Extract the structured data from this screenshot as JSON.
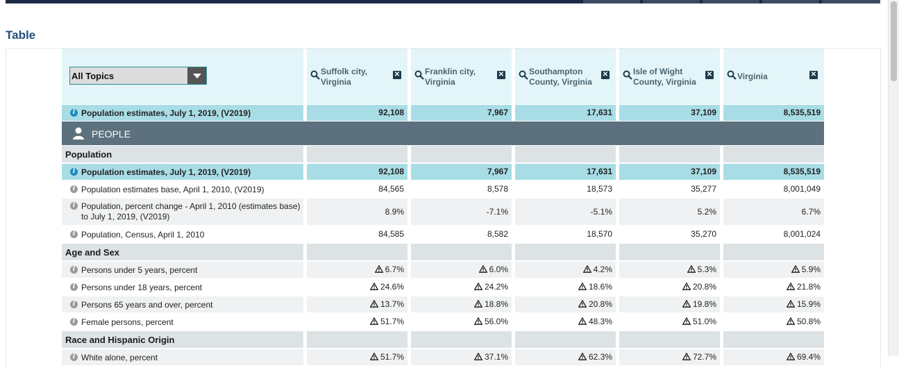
{
  "page": {
    "section_title": "Table"
  },
  "topics": {
    "selected": "All Topics"
  },
  "geographies": [
    {
      "name": "Suffolk city, Virginia"
    },
    {
      "name": "Franklin city, Virginia"
    },
    {
      "name": "Southampton County, Virginia"
    },
    {
      "name": "Isle of Wight County, Virginia"
    },
    {
      "name": "Virginia"
    }
  ],
  "summary_row": {
    "label": "Population estimates, July 1, 2019, (V2019)",
    "values": [
      "92,108",
      "7,967",
      "17,631",
      "37,109",
      "8,535,519"
    ]
  },
  "people_label": "PEOPLE",
  "rows": [
    {
      "kind": "cat",
      "label": "Population",
      "values": [
        "",
        "",
        "",
        "",
        ""
      ]
    },
    {
      "kind": "hl",
      "label": "Population estimates, July 1, 2019, (V2019)",
      "values": [
        "92,108",
        "7,967",
        "17,631",
        "37,109",
        "8,535,519"
      ]
    },
    {
      "kind": "plain",
      "label": "Population estimates base, April 1, 2010, (V2019)",
      "values": [
        "84,565",
        "8,578",
        "18,573",
        "35,277",
        "8,001,049"
      ]
    },
    {
      "kind": "alt",
      "label": "Population, percent change - April 1, 2010 (estimates base) to July 1, 2019, (V2019)",
      "values": [
        "8.9%",
        "-7.1%",
        "-5.1%",
        "5.2%",
        "6.7%"
      ]
    },
    {
      "kind": "plain",
      "label": "Population, Census, April 1, 2010",
      "values": [
        "84,585",
        "8,582",
        "18,570",
        "35,270",
        "8,001,024"
      ]
    },
    {
      "kind": "cat",
      "label": "Age and Sex",
      "values": [
        "",
        "",
        "",
        "",
        ""
      ]
    },
    {
      "kind": "alt",
      "label": "Persons under 5 years, percent",
      "warn": true,
      "values": [
        "6.7%",
        "6.0%",
        "4.2%",
        "5.3%",
        "5.9%"
      ]
    },
    {
      "kind": "plain",
      "label": "Persons under 18 years, percent",
      "warn": true,
      "values": [
        "24.6%",
        "24.2%",
        "18.6%",
        "20.8%",
        "21.8%"
      ]
    },
    {
      "kind": "alt",
      "label": "Persons 65 years and over, percent",
      "warn": true,
      "values": [
        "13.7%",
        "18.8%",
        "20.8%",
        "19.8%",
        "15.9%"
      ]
    },
    {
      "kind": "plain",
      "label": "Female persons, percent",
      "warn": true,
      "values": [
        "51.7%",
        "56.0%",
        "48.3%",
        "51.0%",
        "50.8%"
      ]
    },
    {
      "kind": "cat",
      "label": "Race and Hispanic Origin",
      "values": [
        "",
        "",
        "",
        "",
        ""
      ]
    },
    {
      "kind": "alt",
      "label": "White alone, percent",
      "warn": true,
      "values": [
        "51.7%",
        "37.1%",
        "62.3%",
        "72.7%",
        "69.4%"
      ]
    }
  ],
  "colors": {
    "header_bg": "#e3f5f8",
    "highlight": "#a9dde6",
    "people_bar": "#5c717d",
    "category": "#dde2e5",
    "title": "#1f4e79"
  }
}
